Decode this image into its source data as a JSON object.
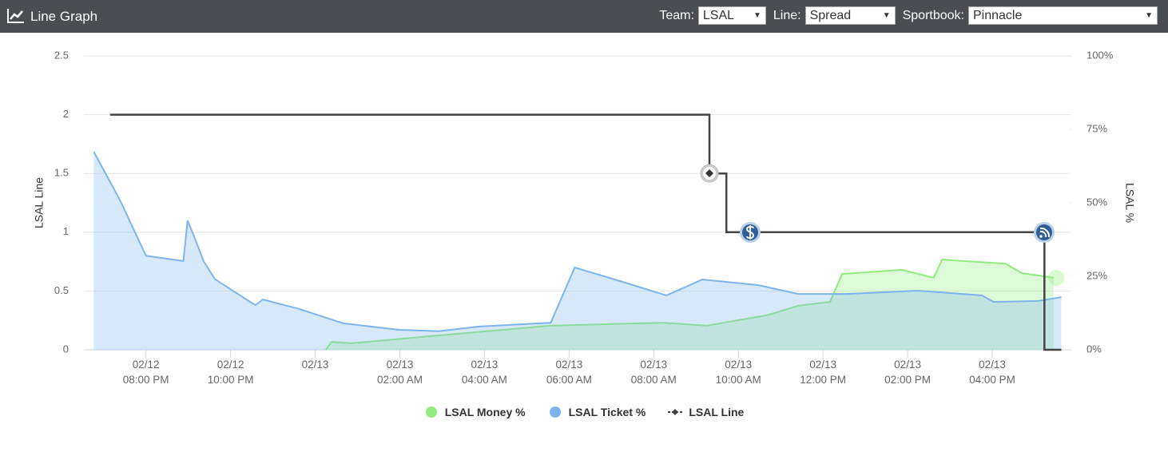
{
  "header": {
    "title": "Line Graph",
    "controls": [
      {
        "label": "Team:",
        "value": "LSAL"
      },
      {
        "label": "Line:",
        "value": "Spread"
      },
      {
        "label": "Sportbook:",
        "value": "Pinnacle"
      }
    ]
  },
  "chart_data": {
    "type": "line",
    "y_label": "LSAL Line",
    "y2_label": "LSAL %",
    "xlim": [
      "02/12 06:32 PM",
      "02/13 05:51 PM"
    ],
    "xticks": [
      "02/12 08:00 PM",
      "02/12 10:00 PM",
      {
        "value": "02/13 12:00 AM",
        "label": "02/13"
      },
      "02/13 02:00 AM",
      "02/13 04:00 AM",
      "02/13 06:00 AM",
      "02/13 08:00 AM",
      "02/13 10:00 AM",
      "02/13 12:00 PM",
      "02/13 02:00 PM",
      "02/13 04:00 PM"
    ],
    "ylim": [
      0,
      2.5
    ],
    "yticks": [
      0,
      0.5,
      1,
      1.5,
      2,
      2.5
    ],
    "y2lim": [
      0,
      100
    ],
    "y2ticks": [
      {
        "value": 0,
        "label": "0%"
      },
      {
        "value": 25,
        "label": "25%"
      },
      {
        "value": 50,
        "label": "50%"
      },
      {
        "value": 75,
        "label": "75%"
      },
      {
        "value": 100,
        "label": "100%"
      }
    ],
    "grid": true,
    "series": [
      {
        "name": "LSAL Money %",
        "color": "#90ed7d",
        "axis": "y2",
        "area": true,
        "x": [
          "02/13 12:15 AM",
          "02/13 12:23 AM",
          "02/13 12:51 AM",
          "02/13 02:55 AM",
          "02/13 05:34 AM",
          "02/13 08:13 AM",
          "02/13 09:15 AM",
          "02/13 10:05 AM",
          "02/13 10:40 AM",
          "02/13 11:25 AM",
          "02/13 12:10 PM",
          "02/13 12:27 PM",
          "02/13 01:52 PM",
          "02/13 02:37 PM",
          "02/13 02:49 PM",
          "02/13 04:19 PM",
          "02/13 04:42 PM",
          "02/13 05:27 PM"
        ],
        "values": [
          0,
          2.7,
          2.2,
          4.9,
          8.2,
          9.2,
          8.2,
          10.3,
          11.7,
          15,
          16.3,
          25.8,
          27.2,
          24.5,
          30.7,
          29.3,
          26.1,
          24.5
        ]
      },
      {
        "name": "LSAL Ticket %",
        "color": "#7cb5ec",
        "axis": "y2",
        "area": true,
        "x": [
          "02/12 06:46 PM",
          "02/12 07:23 PM",
          "02/12 08:00 PM",
          "02/12 08:53 PM",
          "02/12 08:59 PM",
          "02/12 09:10 PM",
          "02/12 09:22 PM",
          "02/12 09:38 PM",
          "02/12 10:35 PM",
          "02/12 10:46 PM",
          "02/12 11:37 PM",
          "02/13 12:40 AM",
          "02/13 01:59 AM",
          "02/13 02:55 AM",
          "02/13 03:52 AM",
          "02/13 05:34 AM",
          "02/13 06:08 AM",
          "02/13 07:05 AM",
          "02/13 08:18 AM",
          "02/13 09:09 AM",
          "02/13 10:28 AM",
          "02/13 11:25 AM",
          "02/13 12:33 PM",
          "02/13 02:15 PM",
          "02/13 03:45 PM",
          "02/13 04:02 PM",
          "02/13 05:05 PM",
          "02/13 05:38 PM"
        ],
        "values": [
          67.4,
          51,
          32,
          30.2,
          44,
          37.5,
          30,
          24,
          15.2,
          17.1,
          13.9,
          9,
          6.8,
          6.3,
          7.9,
          9.2,
          28,
          23.9,
          18.5,
          23.9,
          22,
          19,
          19,
          20.1,
          18.5,
          16.3,
          16.6,
          17.9
        ]
      },
      {
        "name": "LSAL Line",
        "color": "#434348",
        "axis": "y",
        "area": false,
        "x": [
          "02/12 07:09 PM",
          "02/13 09:19 AM",
          "02/13 09:19 AM",
          "02/13 09:43 AM",
          "02/13 09:43 AM",
          "02/13 05:14 PM",
          "02/13 05:14 PM",
          "02/13 05:38 PM"
        ],
        "values": [
          2,
          2,
          1.5,
          1.5,
          1,
          1,
          0,
          0
        ]
      }
    ]
  }
}
